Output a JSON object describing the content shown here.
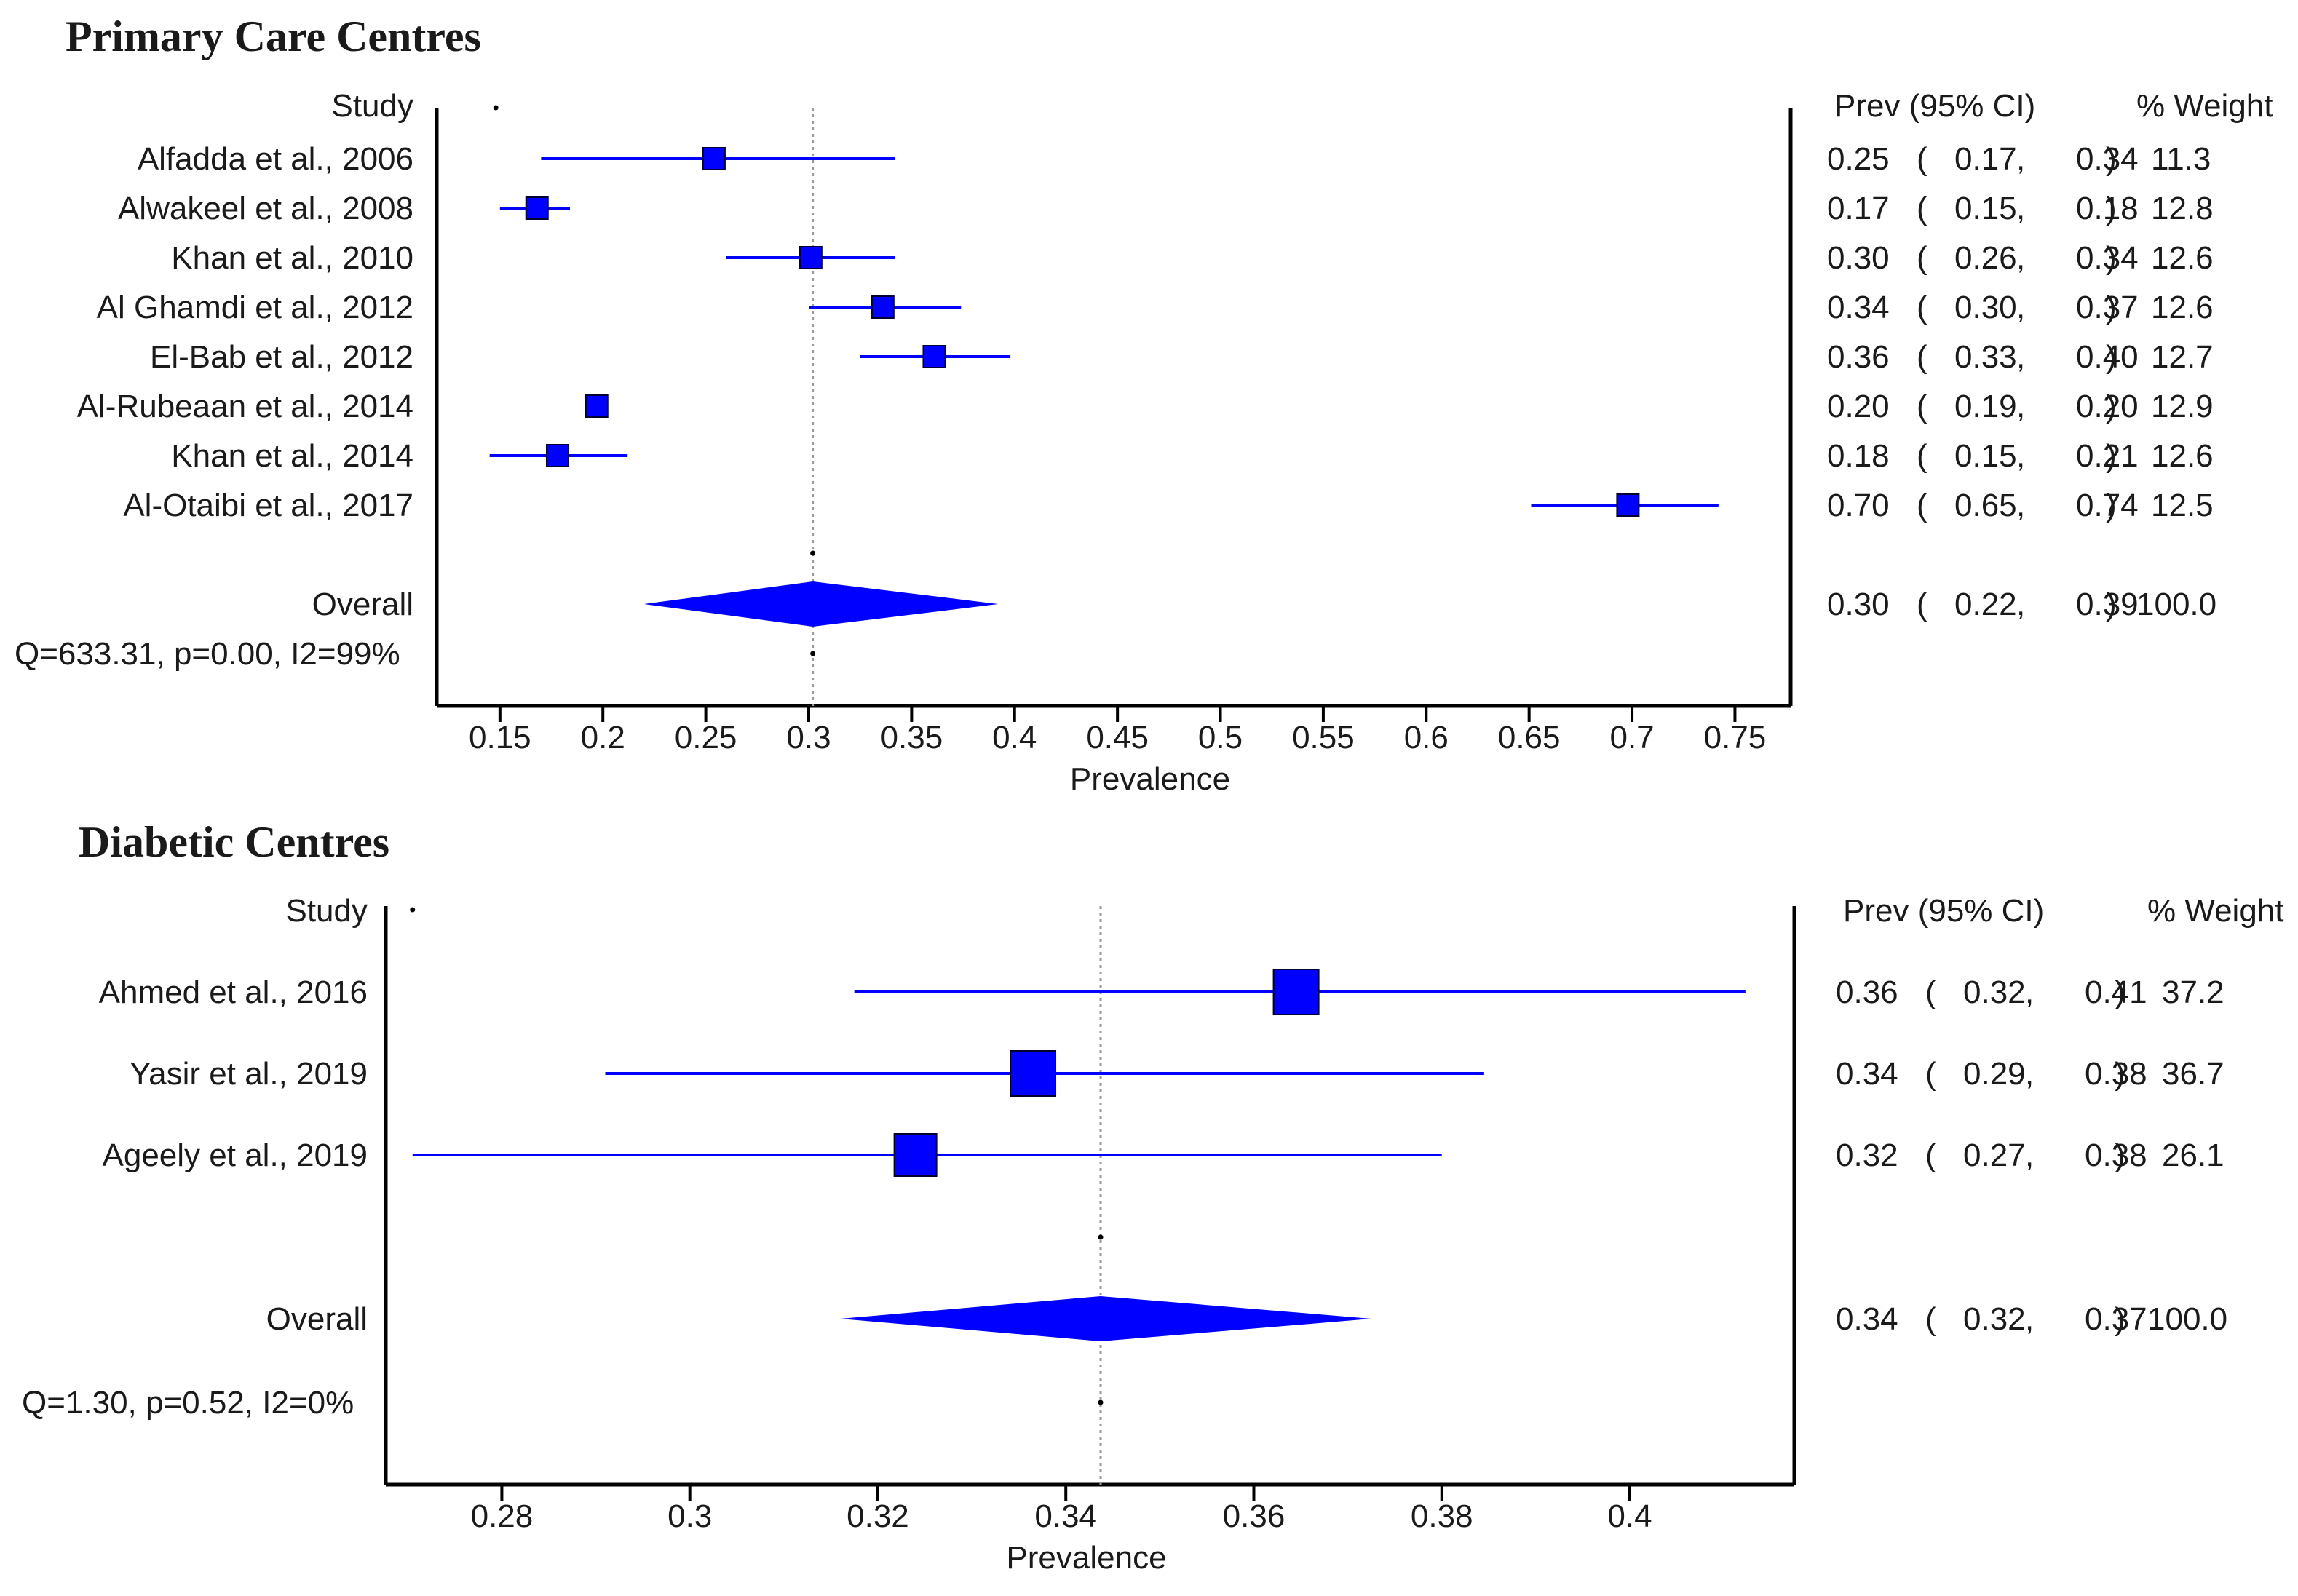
{
  "chart_data": [
    {
      "type": "forest",
      "title": "Primary Care Centres",
      "xlabel": "Prevalence",
      "xlim": [
        0.12,
        0.77
      ],
      "ticks": [
        "0.15",
        "0.2",
        "0.25",
        "0.3",
        "0.35",
        "0.4",
        "0.45",
        "0.5",
        "0.55",
        "0.6",
        "0.65",
        "0.7",
        "0.75"
      ],
      "tick_values": [
        0.15,
        0.2,
        0.25,
        0.3,
        0.35,
        0.4,
        0.45,
        0.5,
        0.55,
        0.6,
        0.65,
        0.7,
        0.75
      ],
      "study_header": "Study",
      "prev_header": "Prev (95% CI)",
      "weight_header": "% Weight",
      "studies": [
        {
          "name": "Alfadda et al., 2006",
          "prev": 0.254,
          "lo": 0.17,
          "hi": 0.342,
          "prev_text": "0.25",
          "lo_text": "0.17",
          "hi_text": "0.34",
          "weight": "11.3"
        },
        {
          "name": "Alwakeel et al., 2008",
          "prev": 0.168,
          "lo": 0.15,
          "hi": 0.184,
          "prev_text": "0.17",
          "lo_text": "0.15",
          "hi_text": "0.18",
          "weight": "12.8"
        },
        {
          "name": "Khan et al., 2010",
          "prev": 0.301,
          "lo": 0.26,
          "hi": 0.342,
          "prev_text": "0.30",
          "lo_text": "0.26",
          "hi_text": "0.34",
          "weight": "12.6"
        },
        {
          "name": "Al Ghamdi et al., 2012",
          "prev": 0.336,
          "lo": 0.3,
          "hi": 0.374,
          "prev_text": "0.34",
          "lo_text": "0.30",
          "hi_text": "0.37",
          "weight": "12.6"
        },
        {
          "name": "El-Bab et al., 2012",
          "prev": 0.361,
          "lo": 0.325,
          "hi": 0.398,
          "prev_text": "0.36",
          "lo_text": "0.33",
          "hi_text": "0.40",
          "weight": "12.7"
        },
        {
          "name": "Al-Rubeaan et al., 2014",
          "prev": 0.197,
          "lo": 0.193,
          "hi": 0.201,
          "prev_text": "0.20",
          "lo_text": "0.19",
          "hi_text": "0.20",
          "weight": "12.9"
        },
        {
          "name": "Khan et al., 2014",
          "prev": 0.178,
          "lo": 0.145,
          "hi": 0.212,
          "prev_text": "0.18",
          "lo_text": "0.15",
          "hi_text": "0.21",
          "weight": "12.6"
        },
        {
          "name": "Al-Otaibi et al., 2017",
          "prev": 0.698,
          "lo": 0.651,
          "hi": 0.742,
          "prev_text": "0.70",
          "lo_text": "0.65",
          "hi_text": "0.74",
          "weight": "12.5"
        }
      ],
      "overall": {
        "name": "Overall",
        "prev": 0.302,
        "lo": 0.22,
        "hi": 0.392,
        "prev_text": "0.30",
        "lo_text": "0.22",
        "hi_text": "0.39",
        "weight": "100.0"
      },
      "heterogeneity": "Q=633.31, p=0.00, I2=99%"
    },
    {
      "type": "forest",
      "title": "Diabetic Centres",
      "xlabel": "Prevalence",
      "xlim": [
        0.2675,
        0.4175
      ],
      "ticks": [
        "0.28",
        "0.3",
        "0.32",
        "0.34",
        "0.36",
        "0.38",
        "0.4"
      ],
      "tick_values": [
        0.28,
        0.3,
        0.32,
        0.34,
        0.36,
        0.38,
        0.4
      ],
      "study_header": "Study",
      "prev_header": "Prev (95% CI)",
      "weight_header": "% Weight",
      "studies": [
        {
          "name": "Ahmed et al., 2016",
          "prev": 0.3645,
          "lo": 0.3175,
          "hi": 0.4123,
          "prev_text": "0.36",
          "lo_text": "0.32",
          "hi_text": "0.41",
          "weight": "37.2"
        },
        {
          "name": "Yasir et al., 2019",
          "prev": 0.3365,
          "lo": 0.291,
          "hi": 0.3845,
          "prev_text": "0.34",
          "lo_text": "0.29",
          "hi_text": "0.38",
          "weight": "36.7"
        },
        {
          "name": "Ageely et al., 2019",
          "prev": 0.324,
          "lo": 0.2705,
          "hi": 0.38,
          "prev_text": "0.32",
          "lo_text": "0.27",
          "hi_text": "0.38",
          "weight": "26.1"
        }
      ],
      "overall": {
        "name": "Overall",
        "prev": 0.3437,
        "lo": 0.316,
        "hi": 0.3725,
        "prev_text": "0.34",
        "lo_text": "0.32",
        "hi_text": "0.37",
        "weight": "100.0"
      },
      "heterogeneity": "Q=1.30, p=0.52, I2=0%"
    }
  ],
  "colors": {
    "marker": "#0000ff",
    "axis": "#000000",
    "text": "#1a1a1a",
    "refline": "#9a9a9a"
  }
}
